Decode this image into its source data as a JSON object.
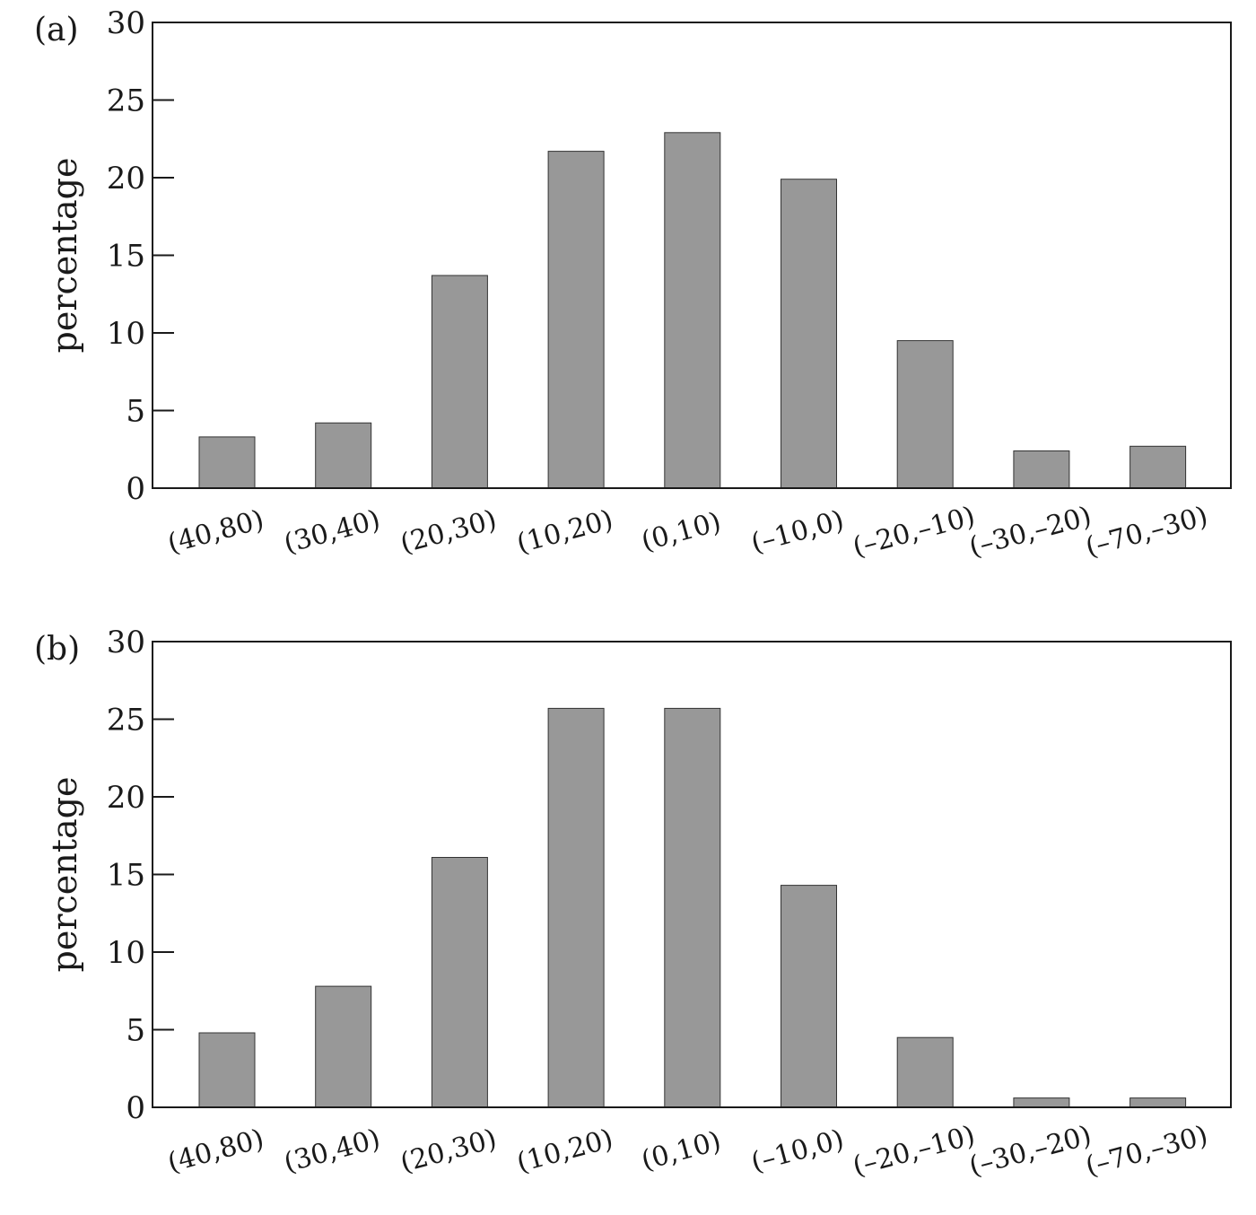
{
  "colors": {
    "bar": "#989898",
    "axis": "#1a1a1a"
  },
  "chart_data": [
    {
      "type": "bar",
      "panel": "(a)",
      "categories": [
        "(40,80)",
        "(30,40)",
        "(20,30)",
        "(10,20)",
        "(0,10)",
        "(–10,0)",
        "(–20,–10)",
        "(–30,–20)",
        "(–70,–30)"
      ],
      "values": [
        3.3,
        4.2,
        13.7,
        21.7,
        22.9,
        19.9,
        9.5,
        2.4,
        2.7
      ],
      "ylabel": "percentage",
      "ylim": [
        0,
        30
      ],
      "yticks": [
        0,
        5,
        10,
        15,
        20,
        25,
        30
      ],
      "grid": false
    },
    {
      "type": "bar",
      "panel": "(b)",
      "categories": [
        "(40,80)",
        "(30,40)",
        "(20,30)",
        "(10,20)",
        "(0,10)",
        "(–10,0)",
        "(–20,–10)",
        "(–30,–20)",
        "(–70,–30)"
      ],
      "values": [
        4.8,
        7.8,
        16.1,
        25.7,
        25.7,
        14.3,
        4.5,
        0.6,
        0.6
      ],
      "ylabel": "percentage",
      "ylim": [
        0,
        30
      ],
      "yticks": [
        0,
        5,
        10,
        15,
        20,
        25,
        30
      ],
      "grid": false
    }
  ]
}
